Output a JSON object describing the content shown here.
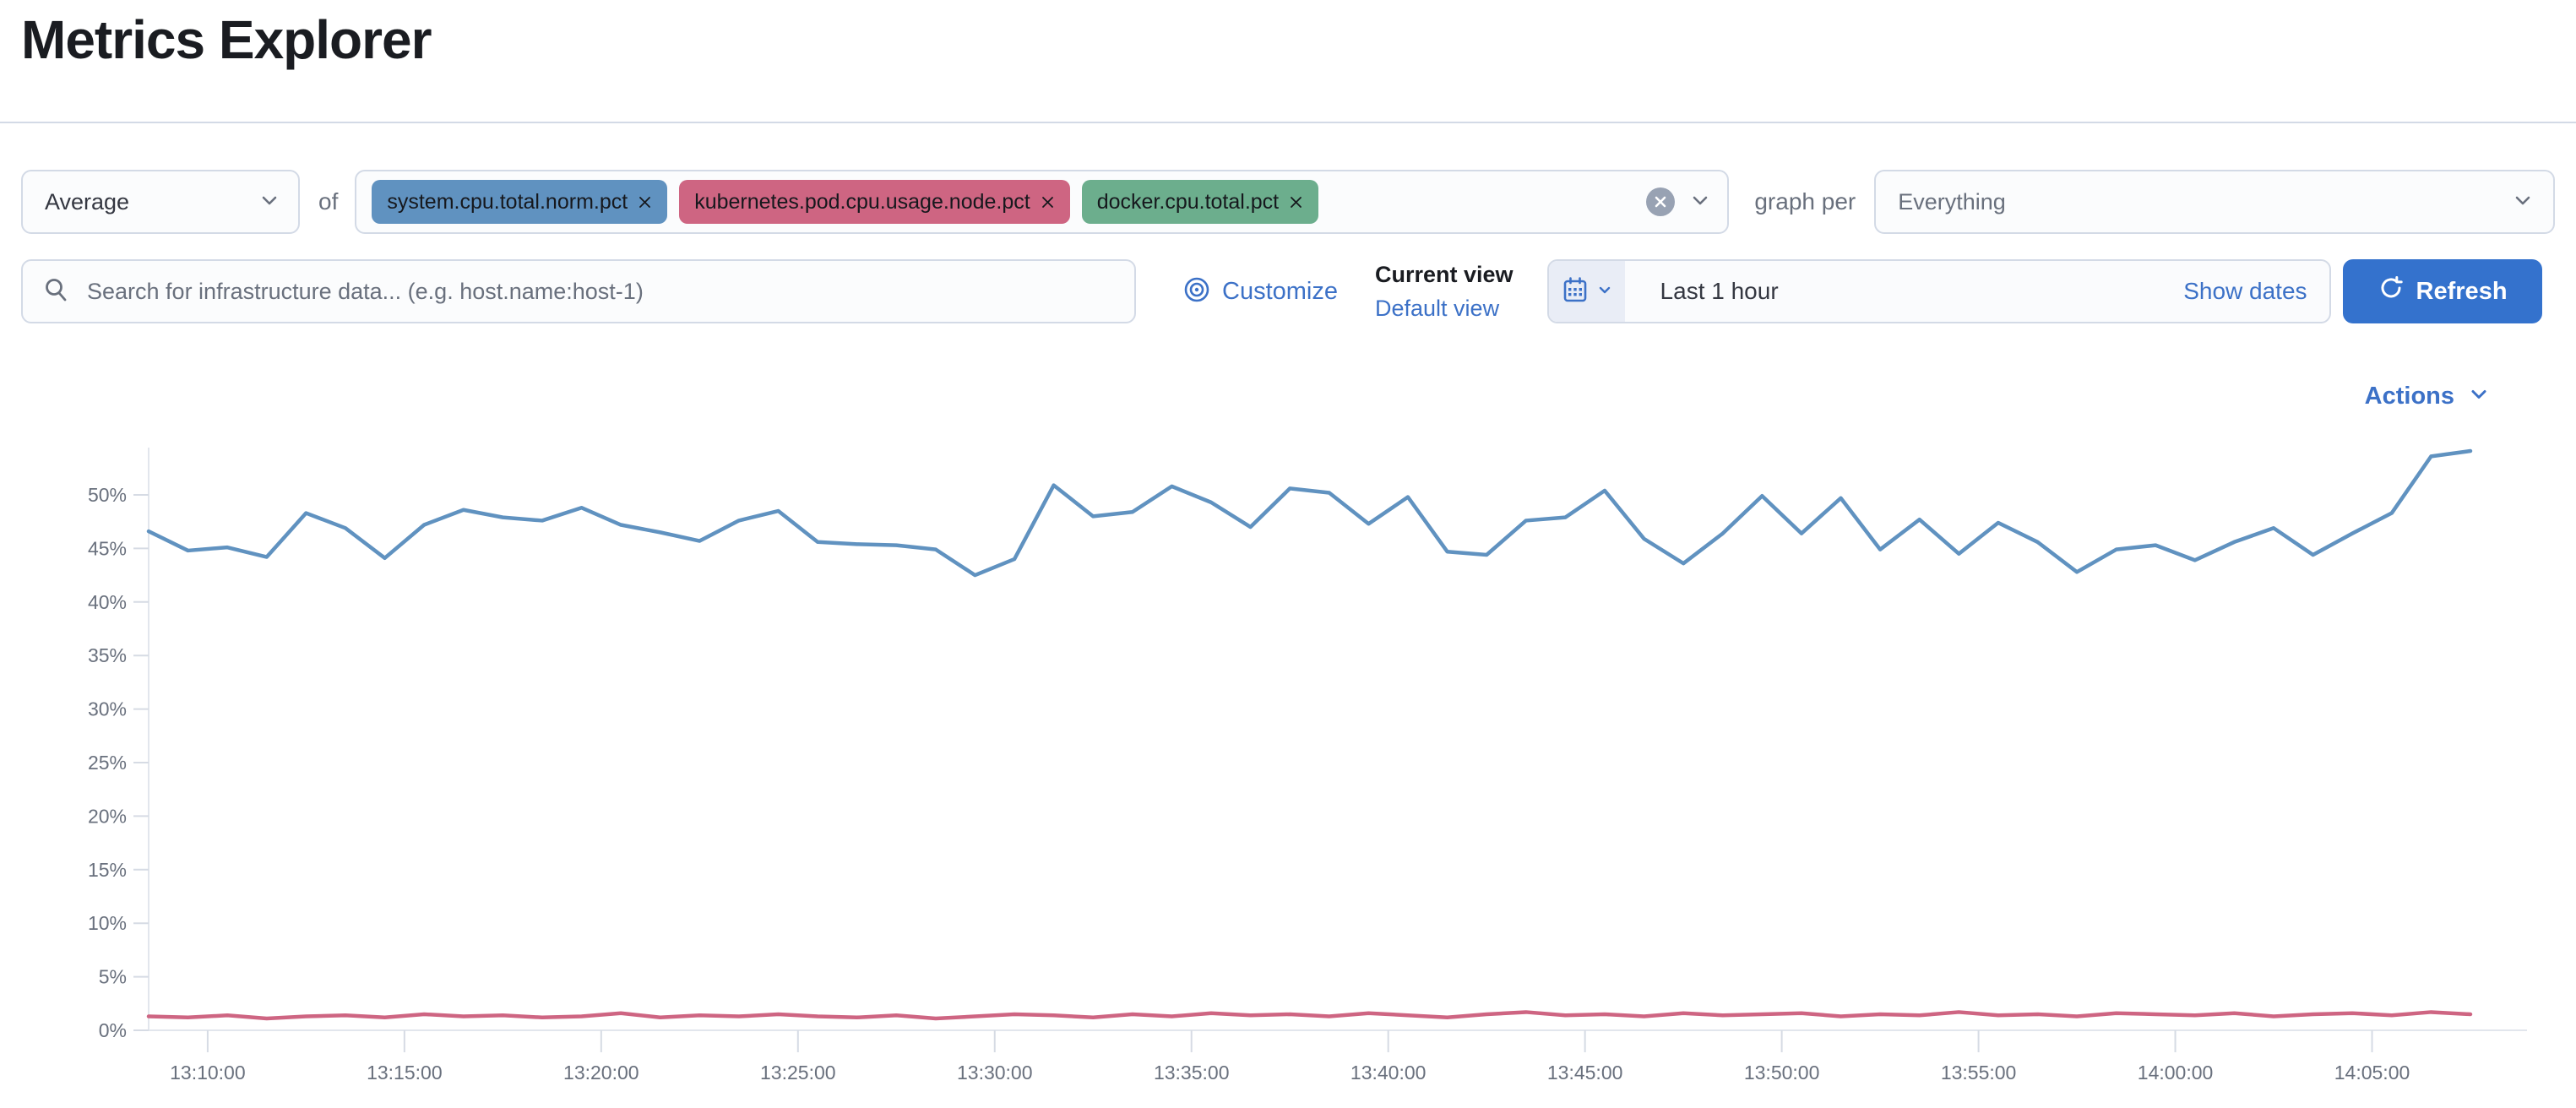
{
  "page": {
    "title": "Metrics Explorer"
  },
  "toolbar": {
    "aggregation_value": "Average",
    "of_label": "of",
    "metrics": [
      {
        "label": "system.cpu.total.norm.pct",
        "color": "#6092C0"
      },
      {
        "label": "kubernetes.pod.cpu.usage.node.pct",
        "color": "#CE6582"
      },
      {
        "label": "docker.cpu.total.pct",
        "color": "#6CAE8D"
      }
    ],
    "graph_per_label": "graph per",
    "group_by_value": "Everything"
  },
  "search": {
    "placeholder": "Search for infrastructure data... (e.g. host.name:host-1)"
  },
  "view": {
    "customize_label": "Customize",
    "current_view_label": "Current view",
    "default_view_label": "Default view"
  },
  "time": {
    "value": "Last 1 hour",
    "show_dates_label": "Show dates",
    "refresh_label": "Refresh"
  },
  "chart": {
    "actions_label": "Actions"
  },
  "colors": {
    "link_blue": "#3C71C7",
    "primary_button": "#3472CD",
    "border": "#D3DAE6",
    "muted_text": "#69707D",
    "axis_line": "#E2E6ED",
    "tick": "#D6DBE4"
  },
  "icons": {
    "search": "magnifier",
    "customize": "bullseye-circles",
    "calendar": "calendar-grid",
    "refresh": "circular-arrow",
    "clear_all": "filled-circle-x",
    "chevron": "chevron-down",
    "pill_remove": "x-cross"
  },
  "chart_data": {
    "type": "line",
    "title": "",
    "xlabel": "",
    "ylabel": "",
    "unit": "%",
    "grid": false,
    "legend": "none",
    "ylim": [
      0,
      55
    ],
    "x_domain_minutes": [
      8.5,
      67.5
    ],
    "x_start_time": "13:08:30",
    "x_step_seconds": 60,
    "y_ticks": [
      {
        "v": 0,
        "label": "0%"
      },
      {
        "v": 5,
        "label": "5%"
      },
      {
        "v": 10,
        "label": "10%"
      },
      {
        "v": 15,
        "label": "15%"
      },
      {
        "v": 20,
        "label": "20%"
      },
      {
        "v": 25,
        "label": "25%"
      },
      {
        "v": 30,
        "label": "30%"
      },
      {
        "v": 35,
        "label": "35%"
      },
      {
        "v": 40,
        "label": "40%"
      },
      {
        "v": 45,
        "label": "45%"
      },
      {
        "v": 50,
        "label": "50%"
      }
    ],
    "x_ticks": [
      {
        "t": 10,
        "label": "13:10:00"
      },
      {
        "t": 15,
        "label": "13:15:00"
      },
      {
        "t": 20,
        "label": "13:20:00"
      },
      {
        "t": 25,
        "label": "13:25:00"
      },
      {
        "t": 30,
        "label": "13:30:00"
      },
      {
        "t": 35,
        "label": "13:35:00"
      },
      {
        "t": 40,
        "label": "13:40:00"
      },
      {
        "t": 45,
        "label": "13:45:00"
      },
      {
        "t": 50,
        "label": "13:50:00"
      },
      {
        "t": 55,
        "label": "13:55:00"
      },
      {
        "t": 60,
        "label": "14:00:00"
      },
      {
        "t": 65,
        "label": "14:05:00"
      }
    ],
    "series": [
      {
        "name": "system.cpu.total.norm.pct (Average)",
        "color": "#6092C0",
        "values": [
          46.6,
          44.8,
          45.1,
          44.2,
          48.3,
          46.9,
          44.1,
          47.2,
          48.6,
          47.9,
          47.6,
          48.8,
          47.2,
          46.5,
          45.7,
          47.6,
          48.5,
          45.6,
          45.4,
          45.3,
          44.9,
          42.5,
          44.0,
          50.9,
          48.0,
          48.4,
          50.8,
          49.3,
          47.0,
          50.6,
          50.2,
          47.3,
          49.8,
          44.7,
          44.4,
          47.6,
          47.9,
          50.4,
          45.9,
          43.6,
          46.4,
          49.9,
          46.4,
          49.7,
          44.9,
          47.7,
          44.5,
          47.4,
          45.6,
          42.8,
          44.9,
          45.3,
          43.9,
          45.6,
          46.9,
          44.4,
          46.4,
          48.3,
          53.6,
          54.1
        ]
      },
      {
        "name": "kubernetes.pod.cpu.usage.node.pct (Average)",
        "color": "#CE6582",
        "values": [
          1.3,
          1.2,
          1.4,
          1.1,
          1.3,
          1.4,
          1.2,
          1.5,
          1.3,
          1.4,
          1.2,
          1.3,
          1.6,
          1.2,
          1.4,
          1.3,
          1.5,
          1.3,
          1.2,
          1.4,
          1.1,
          1.3,
          1.5,
          1.4,
          1.2,
          1.5,
          1.3,
          1.6,
          1.4,
          1.5,
          1.3,
          1.6,
          1.4,
          1.2,
          1.5,
          1.7,
          1.4,
          1.5,
          1.3,
          1.6,
          1.4,
          1.5,
          1.6,
          1.3,
          1.5,
          1.4,
          1.7,
          1.4,
          1.5,
          1.3,
          1.6,
          1.5,
          1.4,
          1.6,
          1.3,
          1.5,
          1.6,
          1.4,
          1.7,
          1.5
        ]
      }
    ]
  }
}
